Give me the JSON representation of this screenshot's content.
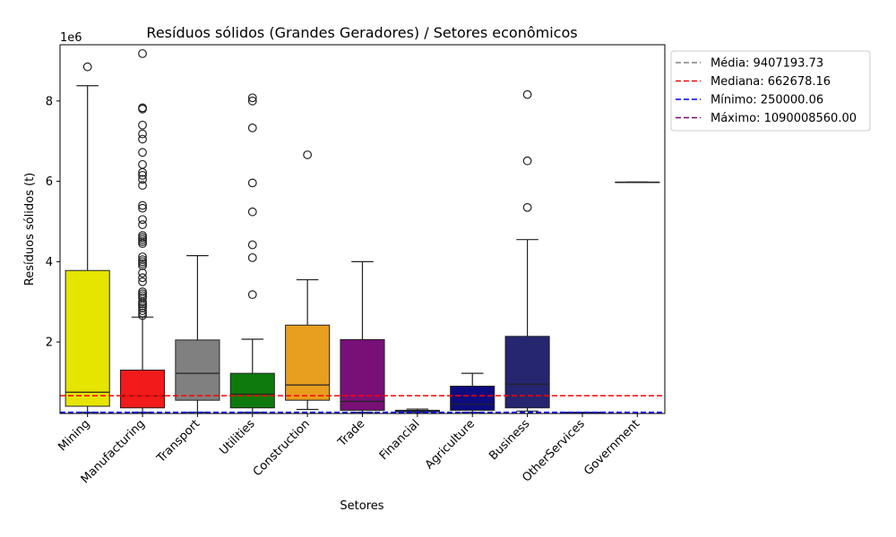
{
  "chart_data": {
    "type": "box",
    "title": "Resíduos sólidos (Grandes Geradores) / Setores econômicos",
    "xlabel": "Setores",
    "ylabel": "Resíduos sólidos (t)",
    "y_offset_label": "1e6",
    "y_scale": 1000000,
    "ylim": [
      0.22,
      9.4
    ],
    "yticks": [
      2,
      4,
      6,
      8
    ],
    "yticks_labels": [
      "2",
      "4",
      "6",
      "8"
    ],
    "grid": false,
    "legend_position": "outside-top-right",
    "categories": [
      "Mining",
      "Manufacturing",
      "Transport",
      "Utilities",
      "Construction",
      "Trade",
      "Financial",
      "Agriculture",
      "Business",
      "OtherServices",
      "Government"
    ],
    "boxes": [
      {
        "category": "Mining",
        "color": "#e5e500",
        "whisker_low": 0.25,
        "q1": 0.4,
        "median": 0.75,
        "q3": 3.78,
        "whisker_high": 8.38,
        "outliers": [
          8.85
        ]
      },
      {
        "category": "Manufacturing",
        "color": "#f21a1a",
        "whisker_low": 0.25,
        "q1": 0.36,
        "median": 0.66,
        "q3": 1.3,
        "whisker_high": 2.62,
        "outliers": [
          9.18,
          7.83,
          7.8,
          7.4,
          7.18,
          7.05,
          6.72,
          6.42,
          6.22,
          6.15,
          6.05,
          5.9,
          5.4,
          5.33,
          5.05,
          4.92,
          4.65,
          4.6,
          4.55,
          4.5,
          4.45,
          4.12,
          4.05,
          4.0,
          3.95,
          3.9,
          3.72,
          3.6,
          3.5,
          3.25,
          3.2,
          3.15,
          3.1,
          3.0,
          2.95,
          2.9,
          2.85,
          2.78,
          2.72,
          2.66
        ]
      },
      {
        "category": "Transport",
        "color": "#808080",
        "whisker_low": 0.25,
        "q1": 0.55,
        "median": 1.22,
        "q3": 2.05,
        "whisker_high": 4.15,
        "outliers": []
      },
      {
        "category": "Utilities",
        "color": "#0e7a0e",
        "whisker_low": 0.25,
        "q1": 0.36,
        "median": 0.7,
        "q3": 1.22,
        "whisker_high": 2.07,
        "outliers": [
          8.08,
          8.0,
          7.33,
          5.96,
          5.24,
          4.42,
          4.1,
          3.18
        ]
      },
      {
        "category": "Construction",
        "color": "#e89e1e",
        "whisker_low": 0.32,
        "q1": 0.55,
        "median": 0.93,
        "q3": 2.42,
        "whisker_high": 3.55,
        "outliers": [
          6.66
        ]
      },
      {
        "category": "Trade",
        "color": "#781078",
        "whisker_low": 0.25,
        "q1": 0.3,
        "median": 0.52,
        "q3": 2.06,
        "whisker_high": 4.0,
        "outliers": []
      },
      {
        "category": "Financial",
        "color": "#1c1c80",
        "whisker_low": 0.25,
        "q1": 0.26,
        "median": 0.28,
        "q3": 0.3,
        "whisker_high": 0.33,
        "outliers": []
      },
      {
        "category": "Agriculture",
        "color": "#0c0c7e",
        "whisker_low": 0.25,
        "q1": 0.3,
        "median": 0.45,
        "q3": 0.9,
        "whisker_high": 1.22,
        "outliers": []
      },
      {
        "category": "Business",
        "color": "#252570",
        "whisker_low": 0.28,
        "q1": 0.36,
        "median": 0.95,
        "q3": 2.14,
        "whisker_high": 4.55,
        "outliers": [
          8.16,
          6.51,
          5.35
        ]
      },
      {
        "category": "OtherServices",
        "color": "#555555",
        "whisker_low": 0.25,
        "q1": 0.25,
        "median": 0.25,
        "q3": 0.25,
        "whisker_high": 0.25,
        "outliers": []
      },
      {
        "category": "Government",
        "color": "#444444",
        "whisker_low": 5.98,
        "q1": 5.98,
        "median": 5.98,
        "q3": 5.98,
        "whisker_high": 5.98,
        "outliers": []
      }
    ],
    "reference_lines": [
      {
        "label": "Média: 9407193.73",
        "value": 9.407,
        "color": "#808080"
      },
      {
        "label": "Mediana: 662678.16",
        "value": 0.6627,
        "color": "#ff0000"
      },
      {
        "label": "Mínimo: 250000.06",
        "value": 0.25,
        "color": "#0000ff"
      },
      {
        "label": "Máximo: 1090008560.00",
        "value": 1090.0,
        "color": "#800080"
      }
    ]
  }
}
